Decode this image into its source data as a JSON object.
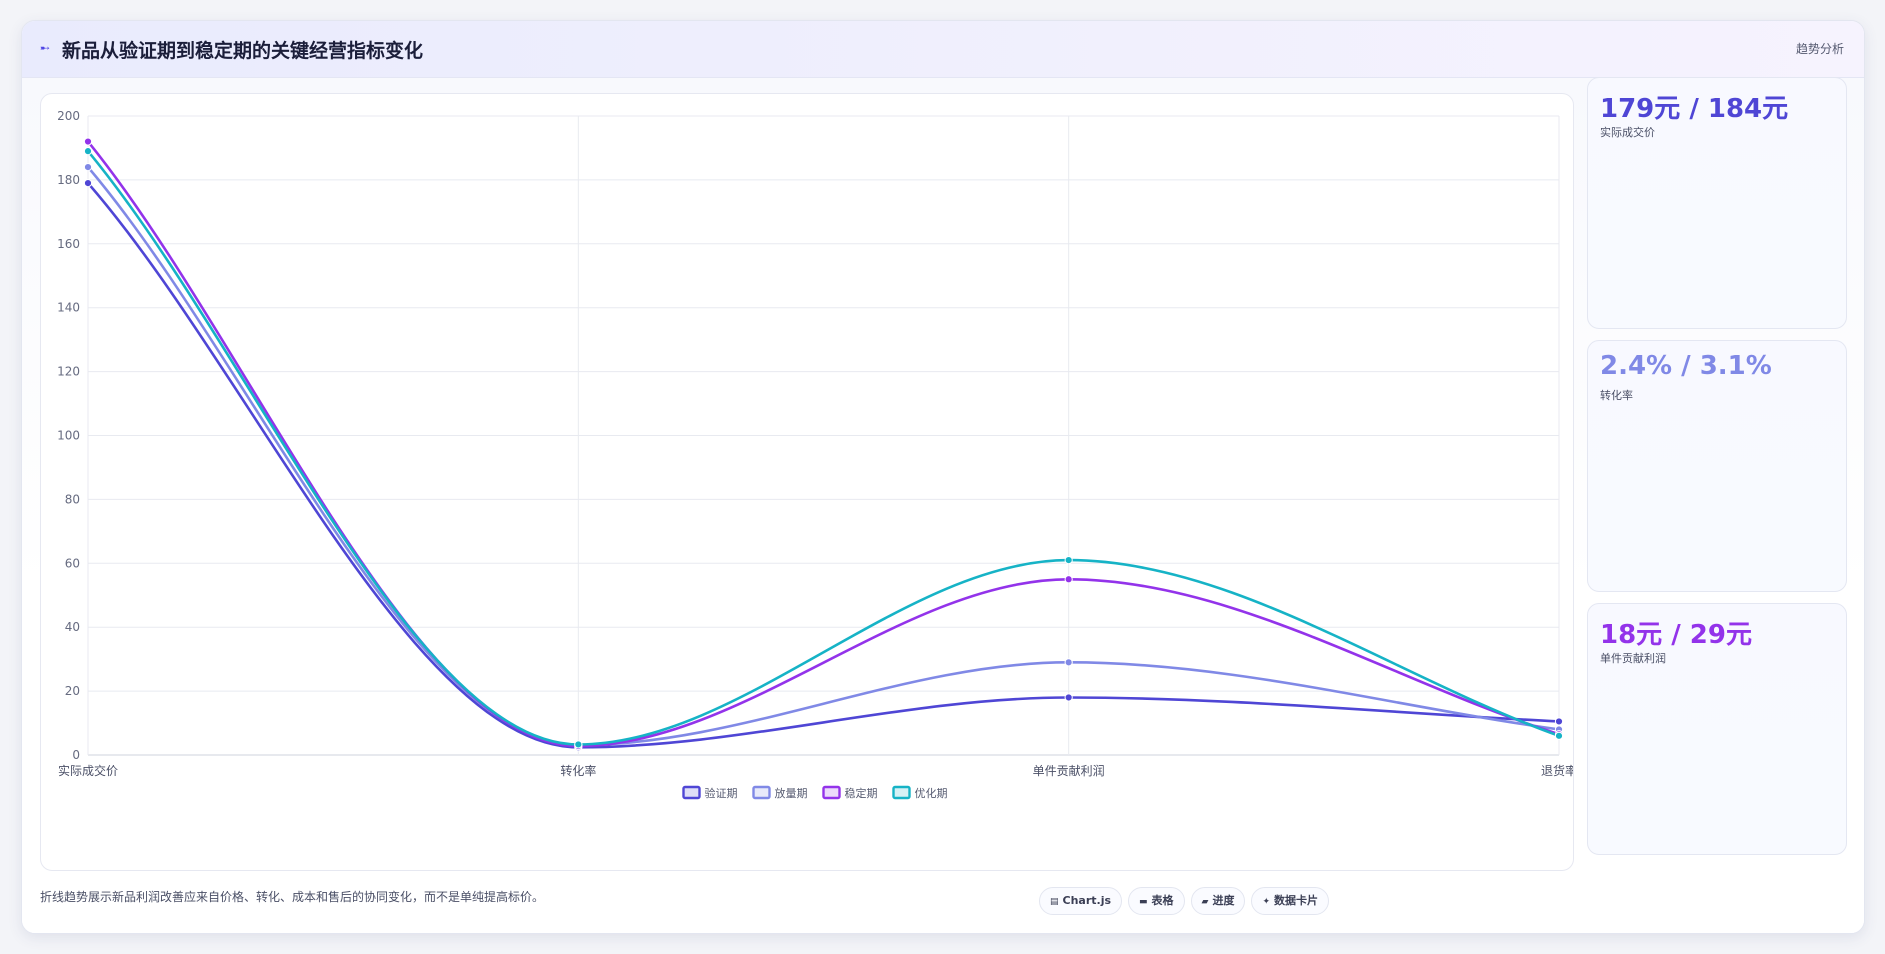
{
  "header": {
    "icon": "line-chart-icon",
    "title": "新品从验证期到稳定期的关键经营指标变化",
    "tag": "趋势分析"
  },
  "chart_data": {
    "type": "line",
    "categories": [
      "实际成交价",
      "转化率",
      "单件贡献利润",
      "退货率"
    ],
    "ylim": [
      0,
      200
    ],
    "yticks": [
      0,
      20,
      40,
      60,
      80,
      100,
      120,
      140,
      160,
      180,
      200
    ],
    "grid": true,
    "legend_position": "bottom",
    "series": [
      {
        "name": "验证期",
        "color": "#4f46d5",
        "values": [
          179,
          2.4,
          18,
          10.5
        ]
      },
      {
        "name": "放量期",
        "color": "#8089e6",
        "values": [
          184,
          3.1,
          29,
          8.0
        ]
      },
      {
        "name": "稳定期",
        "color": "#9333ea",
        "values": [
          192,
          2.8,
          55,
          6.5
        ]
      },
      {
        "name": "优化期",
        "color": "#16b3c6",
        "values": [
          189,
          3.3,
          61,
          6.0
        ]
      }
    ]
  },
  "kpis": [
    {
      "value": "179元 / 184元",
      "label": "实际成交价",
      "color": "#4f46d5"
    },
    {
      "value": "2.4% / 3.1%",
      "label": "转化率",
      "color": "#8089e6"
    },
    {
      "value": "18元 / 29元",
      "label": "单件贡献利润",
      "color": "#9333ea"
    }
  ],
  "footer": {
    "note": "折线趋势展示新品利润改善应来自价格、转化、成本和售后的协同变化，而不是单纯提高标价。",
    "badges": [
      {
        "icon": "chart-icon",
        "glyph": "▤",
        "label": "Chart.js"
      },
      {
        "icon": "table-icon",
        "glyph": "▬",
        "label": "表格"
      },
      {
        "icon": "folder-icon",
        "glyph": "▰",
        "label": "进度"
      },
      {
        "icon": "sparkle-icon",
        "glyph": "✦",
        "label": "数据卡片"
      }
    ]
  }
}
